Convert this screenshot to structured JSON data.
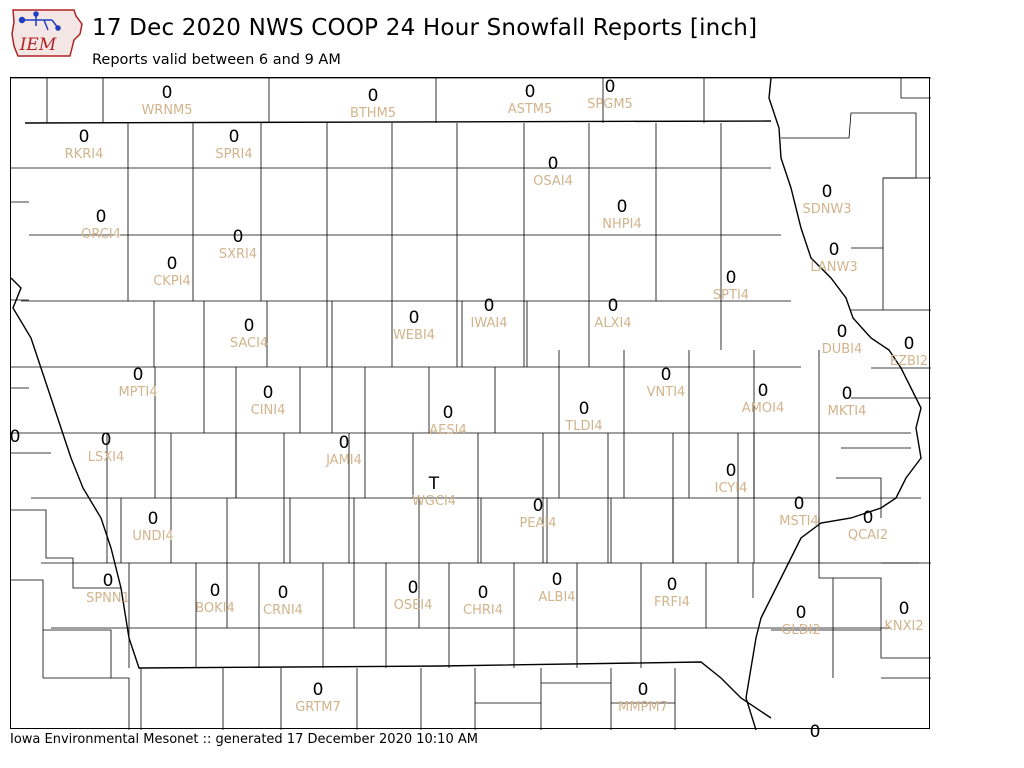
{
  "header": {
    "title": "17 Dec 2020 NWS COOP 24 Hour Snowfall Reports [inch]",
    "subtitle": "Reports valid between 6 and 9 AM",
    "logo_text": "IEM"
  },
  "footer": {
    "text": "Iowa Environmental Mesonet :: generated 17 December 2020 10:10 AM"
  },
  "colors": {
    "value": "#000000",
    "station": "#d2b48c",
    "county_lines": "#000000"
  },
  "stations": [
    {
      "id": "WRNM5",
      "value": "0"
    },
    {
      "id": "BTHM5",
      "value": "0"
    },
    {
      "id": "ASTM5",
      "value": "0"
    },
    {
      "id": "SPGM5",
      "value": "0"
    },
    {
      "id": "RKRI4",
      "value": "0"
    },
    {
      "id": "SPRI4",
      "value": "0"
    },
    {
      "id": "OSAI4",
      "value": "0"
    },
    {
      "id": "SDNW3",
      "value": "0"
    },
    {
      "id": "NHPI4",
      "value": "0"
    },
    {
      "id": "ORCI4",
      "value": "0"
    },
    {
      "id": "SXRI4",
      "value": "0"
    },
    {
      "id": "LANW3",
      "value": "0"
    },
    {
      "id": "CKPI4",
      "value": "0"
    },
    {
      "id": "SPTI4",
      "value": "0"
    },
    {
      "id": "WEBI4",
      "value": "0"
    },
    {
      "id": "IWAI4",
      "value": "0"
    },
    {
      "id": "ALXI4",
      "value": "0"
    },
    {
      "id": "SACI4",
      "value": "0"
    },
    {
      "id": "DUBI4",
      "value": "0"
    },
    {
      "id": "EZBI2",
      "value": "0"
    },
    {
      "id": "MPTI4",
      "value": "0"
    },
    {
      "id": "VNTI4",
      "value": "0"
    },
    {
      "id": "CINI4",
      "value": "0"
    },
    {
      "id": "AMOI4",
      "value": "0"
    },
    {
      "id": "MKTI4",
      "value": "0"
    },
    {
      "id": "AESI4",
      "value": "0"
    },
    {
      "id": "TLDI4",
      "value": "0"
    },
    {
      "id": "",
      "value": "0"
    },
    {
      "id": "LSXI4",
      "value": "0"
    },
    {
      "id": "JAMI4",
      "value": "0"
    },
    {
      "id": "ICYI4",
      "value": "0"
    },
    {
      "id": "WGCI4",
      "value": "T"
    },
    {
      "id": "PEAI4",
      "value": "0"
    },
    {
      "id": "MSTI4",
      "value": "0"
    },
    {
      "id": "UNDI4",
      "value": "0"
    },
    {
      "id": "QCAI2",
      "value": "0"
    },
    {
      "id": "SPNN1",
      "value": "0"
    },
    {
      "id": "BOKI4",
      "value": "0"
    },
    {
      "id": "CRNI4",
      "value": "0"
    },
    {
      "id": "OSEI4",
      "value": "0"
    },
    {
      "id": "CHRI4",
      "value": "0"
    },
    {
      "id": "ALBI4",
      "value": "0"
    },
    {
      "id": "FRFI4",
      "value": "0"
    },
    {
      "id": "KNXI2",
      "value": "0"
    },
    {
      "id": "GLDI2",
      "value": "0"
    },
    {
      "id": "GRTM7",
      "value": "0"
    },
    {
      "id": "MMPM7",
      "value": "0"
    },
    {
      "id": "",
      "value": "0"
    }
  ]
}
